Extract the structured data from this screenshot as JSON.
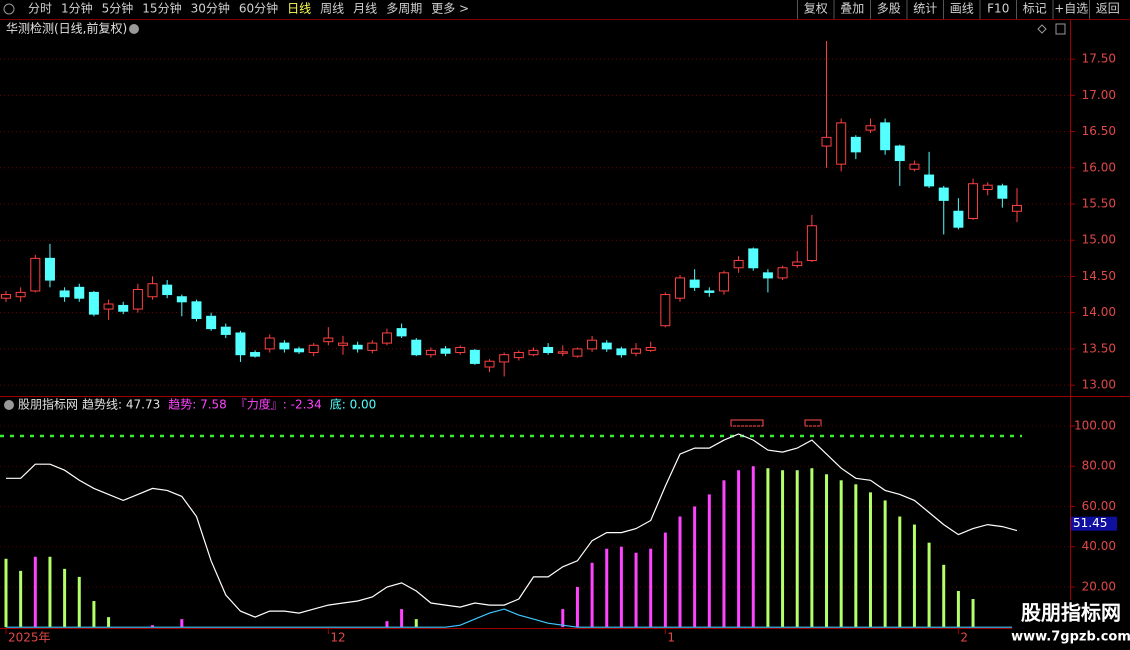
{
  "toolbar": {
    "left": [
      "分时",
      "1分钟",
      "5分钟",
      "15分钟",
      "30分钟",
      "60分钟",
      "日线",
      "周线",
      "月线",
      "多周期",
      "更多 >"
    ],
    "active": 6,
    "right": [
      "复权",
      "叠加",
      "多股",
      "统计",
      "画线",
      "F10",
      "标记",
      "+自选",
      "返回"
    ]
  },
  "price_panel": {
    "title": "华测检测(日线,前复权)",
    "ylim": [
      12.85,
      18.04
    ],
    "yticks": [
      {
        "value": 13,
        "label": "13.00"
      },
      {
        "value": 13.5,
        "label": "13.50"
      },
      {
        "value": 14,
        "label": "14.00"
      },
      {
        "value": 14.5,
        "label": "14.50"
      },
      {
        "value": 15,
        "label": "15.00"
      },
      {
        "value": 15.5,
        "label": "15.50"
      },
      {
        "value": 16,
        "label": "16.00"
      },
      {
        "value": 16.5,
        "label": "16.50"
      },
      {
        "value": 17,
        "label": "17.00"
      },
      {
        "value": 17.5,
        "label": "17.50"
      }
    ],
    "up_color": "#ff4040",
    "down_color": "#54ffff",
    "open": [
      14.2,
      14.22,
      14.3,
      14.75,
      14.3,
      14.35,
      14.28,
      14.05,
      14.1,
      14.05,
      14.22,
      14.38,
      14.22,
      14.15,
      13.95,
      13.8,
      13.72,
      13.45,
      13.5,
      13.58,
      13.5,
      13.45,
      13.6,
      13.55,
      13.55,
      13.48,
      13.58,
      13.78,
      13.62,
      13.42,
      13.5,
      13.45,
      13.48,
      13.25,
      13.32,
      13.38,
      13.42,
      13.52,
      13.44,
      13.4,
      13.5,
      13.58,
      13.5,
      13.44,
      13.48,
      13.82,
      14.2,
      14.45,
      14.3,
      14.3,
      14.62,
      14.88,
      14.55,
      14.48,
      14.65,
      14.72,
      16.3,
      16.05,
      16.42,
      16.52,
      16.62,
      16.3,
      15.98,
      15.9,
      15.72,
      15.4,
      15.3,
      15.7,
      15.75,
      15.4
    ],
    "high": [
      14.3,
      14.35,
      14.8,
      14.95,
      14.35,
      14.4,
      14.3,
      14.18,
      14.15,
      14.4,
      14.5,
      14.45,
      14.25,
      14.18,
      14.0,
      13.85,
      13.75,
      13.48,
      13.7,
      13.62,
      13.53,
      13.58,
      13.8,
      13.68,
      13.6,
      13.62,
      13.78,
      13.85,
      13.65,
      13.52,
      13.54,
      13.55,
      13.5,
      13.36,
      13.45,
      13.48,
      13.52,
      13.58,
      13.55,
      13.52,
      13.68,
      13.62,
      13.53,
      13.58,
      13.6,
      14.28,
      14.52,
      14.6,
      14.35,
      14.58,
      14.78,
      14.9,
      14.6,
      14.65,
      14.85,
      15.35,
      17.75,
      16.68,
      16.45,
      16.68,
      16.68,
      16.32,
      16.1,
      16.22,
      15.75,
      15.58,
      15.85,
      15.8,
      15.78,
      15.72
    ],
    "low": [
      14.15,
      14.15,
      14.28,
      14.35,
      14.15,
      14.15,
      13.95,
      13.9,
      13.98,
      14.0,
      14.18,
      14.2,
      13.95,
      13.88,
      13.75,
      13.65,
      13.32,
      13.38,
      13.45,
      13.45,
      13.43,
      13.4,
      13.55,
      13.42,
      13.45,
      13.44,
      13.55,
      13.65,
      13.4,
      13.38,
      13.4,
      13.42,
      13.28,
      13.18,
      13.12,
      13.34,
      13.4,
      13.42,
      13.4,
      13.38,
      13.46,
      13.46,
      13.38,
      13.4,
      13.46,
      13.8,
      14.15,
      14.3,
      14.22,
      14.25,
      14.55,
      14.58,
      14.28,
      14.45,
      14.62,
      14.7,
      16.0,
      15.95,
      16.12,
      16.48,
      16.18,
      15.75,
      15.95,
      15.72,
      15.08,
      15.15,
      15.28,
      15.62,
      15.45,
      15.25
    ],
    "close": [
      14.25,
      14.28,
      14.75,
      14.45,
      14.22,
      14.2,
      13.98,
      14.12,
      14.02,
      14.32,
      14.4,
      14.25,
      14.15,
      13.92,
      13.78,
      13.7,
      13.42,
      13.4,
      13.65,
      13.5,
      13.46,
      13.55,
      13.65,
      13.58,
      13.5,
      13.58,
      13.72,
      13.68,
      13.42,
      13.48,
      13.44,
      13.52,
      13.3,
      13.33,
      13.42,
      13.45,
      13.48,
      13.45,
      13.46,
      13.5,
      13.62,
      13.5,
      13.42,
      13.5,
      13.52,
      14.25,
      14.48,
      14.35,
      14.28,
      14.55,
      14.72,
      14.62,
      14.48,
      14.62,
      14.7,
      15.2,
      16.42,
      16.62,
      16.22,
      16.58,
      16.25,
      16.1,
      16.05,
      15.75,
      15.55,
      15.18,
      15.78,
      15.76,
      15.58,
      15.48
    ]
  },
  "indicator_panel": {
    "name": "股朋指标网",
    "legend": [
      {
        "text": "趋势线: 47.73",
        "color": "#e0e0e0"
      },
      {
        "text": "趋势: 7.58",
        "color": "#ff44ff"
      },
      {
        "text": "『力度』: -2.34",
        "color": "#ff44ff"
      },
      {
        "text": "底: 0.00",
        "color": "#54ffff"
      }
    ],
    "ylim": [
      -0.4,
      114.4
    ],
    "yticks": [
      {
        "value": 20,
        "label": "20.00"
      },
      {
        "value": 40,
        "label": "40.00"
      },
      {
        "value": 60,
        "label": "60.00"
      },
      {
        "value": 80,
        "label": "80.00"
      },
      {
        "value": 100,
        "label": "100.00"
      }
    ],
    "current_value": 51.45,
    "signal_line": {
      "value": 95,
      "color": "#33ee33"
    },
    "bars": {
      "values": [
        34,
        28,
        35,
        35,
        29,
        25,
        13,
        5,
        null,
        null,
        1,
        null,
        4,
        null,
        null,
        null,
        null,
        null,
        null,
        null,
        null,
        null,
        null,
        null,
        null,
        null,
        3,
        9,
        4,
        null,
        null,
        null,
        null,
        null,
        null,
        null,
        null,
        null,
        9,
        20,
        32,
        39,
        40,
        37,
        39,
        47,
        55,
        60,
        66,
        73,
        78,
        80,
        79,
        78,
        78,
        79,
        76,
        73,
        71,
        67,
        63,
        55,
        51,
        42,
        31,
        18,
        14,
        null,
        null,
        null
      ],
      "colors": [
        "#b4ff6a",
        "#b4ff6a",
        "#ff44ff",
        "#b4ff6a",
        "#b4ff6a",
        "#b4ff6a",
        "#b4ff6a",
        "#b4ff6a",
        null,
        null,
        "#ff44ff",
        null,
        "#ff44ff",
        null,
        null,
        null,
        null,
        null,
        null,
        null,
        null,
        null,
        null,
        null,
        null,
        null,
        "#ff44ff",
        "#ff44ff",
        "#b4ff6a",
        null,
        null,
        null,
        null,
        null,
        null,
        null,
        null,
        null,
        "#ff44ff",
        "#ff44ff",
        "#ff44ff",
        "#ff44ff",
        "#ff44ff",
        "#ff44ff",
        "#ff44ff",
        "#ff44ff",
        "#ff44ff",
        "#ff44ff",
        "#ff44ff",
        "#ff44ff",
        "#ff44ff",
        "#ff44ff",
        "#b4ff6a",
        "#b4ff6a",
        "#b4ff6a",
        "#b4ff6a",
        "#b4ff6a",
        "#b4ff6a",
        "#b4ff6a",
        "#b4ff6a",
        "#b4ff6a",
        "#b4ff6a",
        "#b4ff6a",
        "#b4ff6a",
        "#b4ff6a",
        "#b4ff6a",
        "#b4ff6a",
        null,
        null,
        null
      ]
    },
    "trend_line": {
      "color": "#ffffff",
      "values": [
        74,
        74,
        81,
        81,
        78,
        73,
        69,
        66,
        63,
        66,
        69,
        68,
        65,
        55,
        33,
        16,
        8,
        5,
        8,
        8,
        7,
        9,
        11,
        12,
        13,
        15,
        20,
        22,
        18,
        12,
        11,
        10,
        12,
        11,
        11,
        14,
        25,
        25,
        30,
        33,
        43,
        47,
        47,
        49,
        53,
        70,
        86,
        89,
        89,
        93,
        96,
        93,
        88,
        87,
        89,
        93,
        86,
        79,
        74,
        73,
        68,
        66,
        63,
        57,
        51,
        46,
        49,
        51,
        50,
        48
      ]
    },
    "base_line": {
      "color": "#3fc8ff",
      "values": [
        0,
        0,
        0,
        0,
        0,
        0,
        0,
        0,
        0,
        0,
        0,
        0,
        0,
        0,
        0,
        0,
        0,
        0,
        0,
        0,
        0,
        0,
        0,
        0,
        0,
        0,
        0,
        0,
        0,
        0,
        0,
        1,
        4,
        7,
        9,
        6,
        4,
        2,
        1,
        0,
        0,
        0,
        0,
        0,
        0,
        0,
        0,
        0,
        0,
        0,
        0,
        0,
        0,
        0,
        0,
        0,
        0,
        0,
        0,
        0,
        0,
        0,
        0,
        0,
        0,
        0,
        0,
        0,
        0,
        0
      ]
    }
  },
  "x_axis": {
    "categories": [
      "2025年",
      null,
      null,
      null,
      null,
      null,
      null,
      null,
      null,
      null,
      null,
      null,
      null,
      null,
      null,
      null,
      null,
      null,
      null,
      null,
      null,
      null,
      "12",
      null,
      null,
      null,
      null,
      null,
      null,
      null,
      null,
      null,
      null,
      null,
      null,
      null,
      null,
      null,
      null,
      null,
      null,
      null,
      null,
      null,
      null,
      "1",
      null,
      null,
      null,
      null,
      null,
      null,
      null,
      null,
      null,
      null,
      null,
      null,
      null,
      null,
      null,
      null,
      null,
      null,
      null,
      "2",
      null,
      null,
      null,
      null
    ]
  },
  "watermark": {
    "title": "股朋指标网",
    "url": "www.7gpzb.com"
  }
}
